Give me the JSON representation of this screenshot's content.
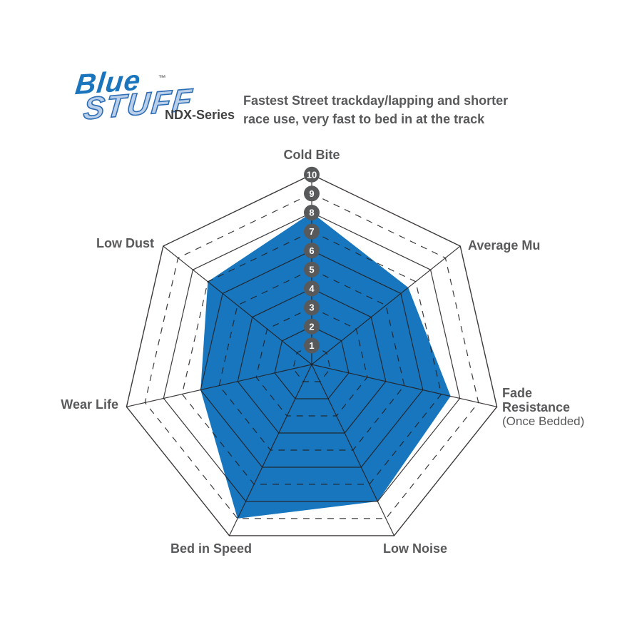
{
  "header": {
    "logo": {
      "line1": "Blue",
      "line2": "STUFF",
      "tm": "™",
      "series": "NDX-Series"
    },
    "description_line1": "Fastest Street trackday/lapping and shorter",
    "description_line2": "race use, very fast to bed in at the track"
  },
  "chart_data": {
    "type": "radar",
    "categories": [
      "Cold Bite",
      "Average Mu",
      "Fade Resistance (Once Bedded)",
      "Low Noise",
      "Bed in Speed",
      "Wear Life",
      "Low Dust"
    ],
    "values": [
      8,
      6.5,
      7.5,
      8,
      9,
      6,
      7
    ],
    "scale": {
      "min": 1,
      "max": 10,
      "ticks": [
        1,
        2,
        3,
        4,
        5,
        6,
        7,
        8,
        9,
        10
      ]
    },
    "grid": "concentric heptagons, even rings solid, odd rings dashed, 7 solid spokes",
    "legend": "none",
    "fill_color": "#1776BD",
    "grid_color": "#231F20",
    "badge_color": "#58595B",
    "badge_text_color": "#FFFFFF",
    "label_color": "#58595B",
    "labels": {
      "cold_bite": "Cold Bite",
      "average_mu": "Average Mu",
      "fade_line1": "Fade",
      "fade_line2": "Resistance",
      "fade_line3": "(Once Bedded)",
      "low_noise": "Low Noise",
      "bed_in_speed": "Bed in Speed",
      "wear_life": "Wear Life",
      "low_dust": "Low Dust"
    }
  }
}
